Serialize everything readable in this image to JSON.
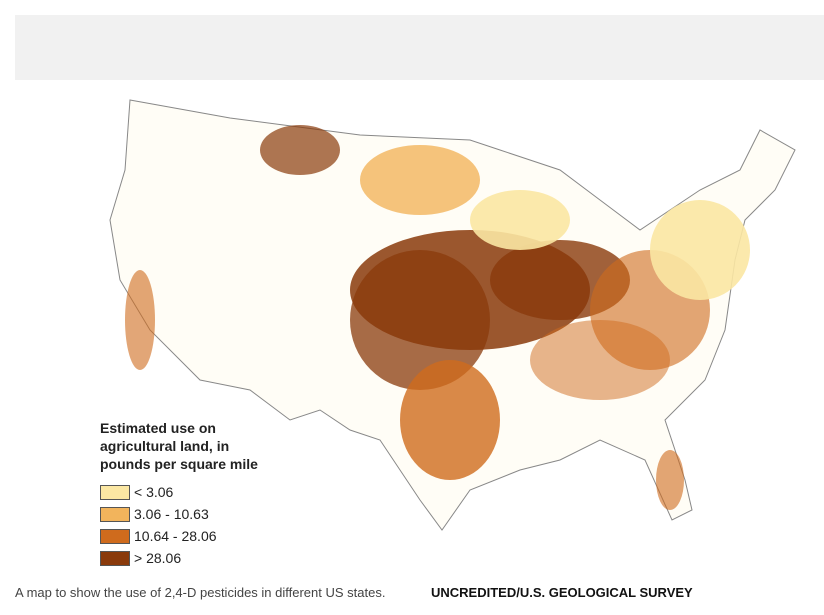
{
  "map": {
    "legend": {
      "title_lines": [
        "Estimated use on",
        "agricultural land, in",
        "pounds per square mile"
      ],
      "items": [
        {
          "label": "< 3.06",
          "color": "#fbe7a3"
        },
        {
          "label": "3.06 - 10.63",
          "color": "#f2b45c"
        },
        {
          "label": "10.64 - 28.06",
          "color": "#cf6b1d"
        },
        {
          "label": "> 28.06",
          "color": "#8a3a0b"
        }
      ]
    },
    "caption": "A map to show the use of 2,4-D pesticides in different US states.",
    "credit": "UNCREDITED/U.S. GEOLOGICAL SURVEY"
  }
}
